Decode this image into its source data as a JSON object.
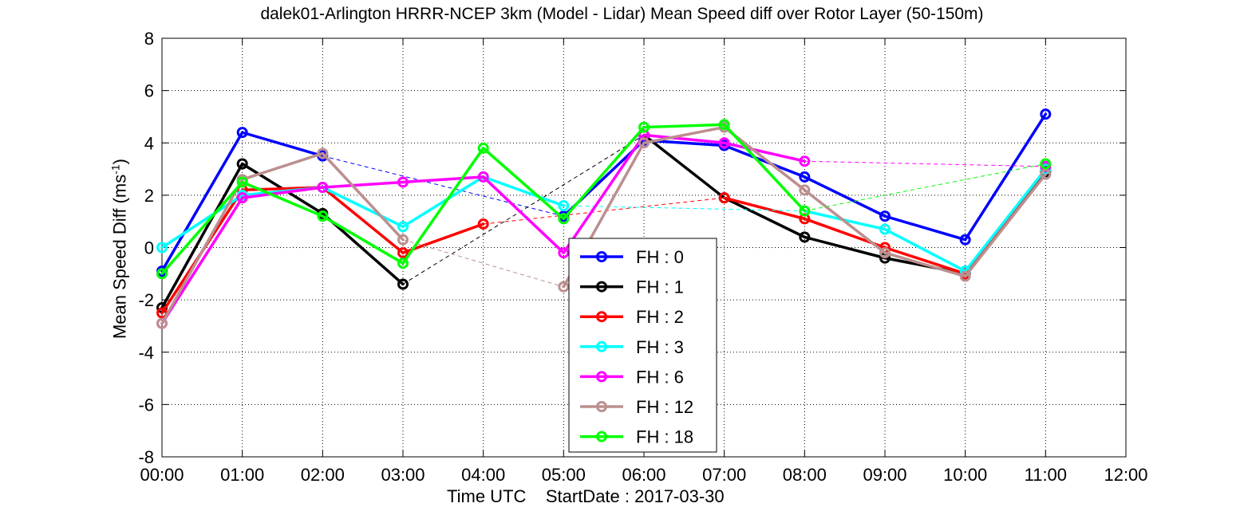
{
  "chart_data": {
    "type": "line",
    "title": "dalek01-Arlington HRRR-NCEP 3km (Model - Lidar) Mean Speed diff over Rotor Layer (50-150m)",
    "xlabel": "Time UTC    StartDate : 2017-03-30",
    "ylabel": {
      "main": "Mean Speed Diff (ms",
      "sup": "-1",
      "close": ")"
    },
    "x_ticks": [
      "00:00",
      "01:00",
      "02:00",
      "03:00",
      "04:00",
      "05:00",
      "06:00",
      "07:00",
      "08:00",
      "09:00",
      "10:00",
      "11:00",
      "12:00"
    ],
    "y_ticks": [
      -8,
      -6,
      -4,
      -2,
      0,
      2,
      4,
      6,
      8
    ],
    "xlim": [
      0,
      12
    ],
    "ylim": [
      -8,
      8
    ],
    "grid": "dotted",
    "legend_position": "bottom-center",
    "series": [
      {
        "name": "FH : 0",
        "color": "#0000ff",
        "values": [
          -0.9,
          4.4,
          3.5,
          null,
          null,
          1.2,
          4.1,
          3.9,
          2.7,
          1.2,
          0.3,
          5.1
        ]
      },
      {
        "name": "FH : 1",
        "color": "#000000",
        "values": [
          -2.3,
          3.2,
          1.3,
          -1.4,
          null,
          null,
          4.3,
          1.9,
          0.4,
          -0.4,
          -1.0,
          2.9
        ]
      },
      {
        "name": "FH : 2",
        "color": "#ff0000",
        "values": [
          -2.5,
          2.2,
          2.3,
          -0.2,
          0.9,
          null,
          null,
          1.9,
          1.1,
          0.0,
          -1.0,
          3.0
        ]
      },
      {
        "name": "FH : 3",
        "color": "#00ffff",
        "values": [
          0.0,
          2.0,
          2.3,
          0.8,
          2.7,
          1.6,
          null,
          null,
          1.4,
          0.7,
          -0.9,
          3.0
        ]
      },
      {
        "name": "FH : 6",
        "color": "#ff00ff",
        "values": [
          -2.9,
          1.9,
          2.3,
          2.5,
          2.7,
          -0.2,
          4.3,
          4.0,
          3.3,
          null,
          null,
          3.1
        ]
      },
      {
        "name": "FH : 12",
        "color": "#bc8f8f",
        "values": [
          -2.9,
          2.6,
          3.6,
          0.3,
          null,
          -1.5,
          4.0,
          4.6,
          2.2,
          -0.2,
          -1.1,
          2.8
        ]
      },
      {
        "name": "FH : 18",
        "color": "#00ff00",
        "values": [
          -1.0,
          2.5,
          1.2,
          -0.6,
          3.8,
          1.1,
          4.6,
          4.7,
          1.4,
          null,
          null,
          3.2
        ]
      }
    ]
  }
}
